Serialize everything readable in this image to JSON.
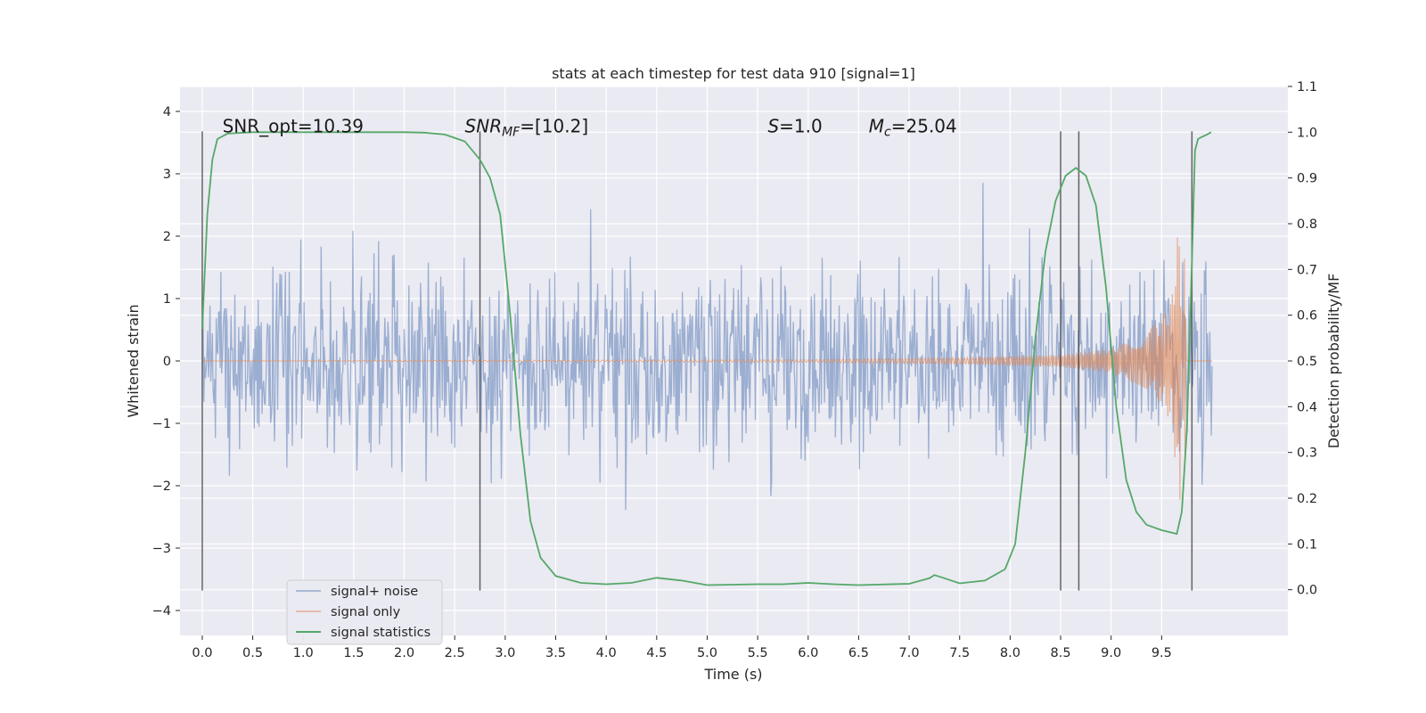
{
  "chart_data": {
    "type": "line",
    "title": "stats at each timestep for test data 910 [signal=1]",
    "xlabel": "Time (s)",
    "ylabel": "Whitened strain",
    "y2label": "Detection probability/MF",
    "xlim": [
      -0.22,
      10.75
    ],
    "ylim": [
      -4.4,
      4.4
    ],
    "y2lim": [
      -0.1,
      1.1
    ],
    "xticks": [
      "0.0",
      "0.5",
      "1.0",
      "1.5",
      "2.0",
      "2.5",
      "3.0",
      "3.5",
      "4.0",
      "4.5",
      "5.0",
      "5.5",
      "6.0",
      "6.5",
      "7.0",
      "7.5",
      "8.0",
      "8.5",
      "9.0",
      "9.5"
    ],
    "xtick_values": [
      0.0,
      0.5,
      1.0,
      1.5,
      2.0,
      2.5,
      3.0,
      3.5,
      4.0,
      4.5,
      5.0,
      5.5,
      6.0,
      6.5,
      7.0,
      7.5,
      8.0,
      8.5,
      9.0,
      9.5
    ],
    "yticks": [
      "4",
      "3",
      "2",
      "1",
      "0",
      "−1",
      "−2",
      "−3",
      "−4"
    ],
    "ytick_values": [
      4,
      3,
      2,
      1,
      0,
      -1,
      -2,
      -3,
      -4
    ],
    "y2ticks": [
      "1.1",
      "1.0",
      "0.9",
      "0.8",
      "0.7",
      "0.6",
      "0.5",
      "0.4",
      "0.3",
      "0.2",
      "0.1",
      "0.0"
    ],
    "y2tick_values": [
      1.1,
      1.0,
      0.9,
      0.8,
      0.7,
      0.6,
      0.5,
      0.4,
      0.3,
      0.2,
      0.1,
      0.0
    ],
    "grid": true,
    "legend_position": "bottom-left",
    "series": [
      {
        "name": "signal+ noise",
        "color": "#4c72b0",
        "axis": "left",
        "description_values": {
          "t_start": 0.0,
          "t_end": 10.0,
          "envelope_low": -2.0,
          "envelope_high": 2.0
        }
      },
      {
        "name": "signal only",
        "color": "#dd8452",
        "axis": "left",
        "points": [
          [
            0.0,
            0.0
          ],
          [
            6.0,
            0.02
          ],
          [
            7.5,
            0.05
          ],
          [
            8.5,
            0.1
          ],
          [
            9.0,
            0.2
          ],
          [
            9.3,
            0.4
          ],
          [
            9.5,
            0.7
          ],
          [
            9.6,
            1.0
          ],
          [
            9.68,
            2.4
          ],
          [
            9.72,
            -2.5
          ],
          [
            9.75,
            0.0
          ],
          [
            10.0,
            0.0
          ]
        ]
      },
      {
        "name": "signal statistics",
        "color": "#55a868",
        "axis": "right",
        "points": [
          [
            0.0,
            0.57
          ],
          [
            0.05,
            0.82
          ],
          [
            0.1,
            0.94
          ],
          [
            0.15,
            0.985
          ],
          [
            0.25,
            0.997
          ],
          [
            0.5,
            1.0
          ],
          [
            1.0,
            1.0
          ],
          [
            1.5,
            1.0
          ],
          [
            2.0,
            1.0
          ],
          [
            2.2,
            0.999
          ],
          [
            2.4,
            0.995
          ],
          [
            2.6,
            0.98
          ],
          [
            2.75,
            0.94
          ],
          [
            2.85,
            0.9
          ],
          [
            2.95,
            0.82
          ],
          [
            3.05,
            0.6
          ],
          [
            3.15,
            0.34
          ],
          [
            3.25,
            0.15
          ],
          [
            3.35,
            0.07
          ],
          [
            3.5,
            0.03
          ],
          [
            3.75,
            0.015
          ],
          [
            4.0,
            0.012
          ],
          [
            4.25,
            0.015
          ],
          [
            4.5,
            0.026
          ],
          [
            4.75,
            0.02
          ],
          [
            5.0,
            0.01
          ],
          [
            5.5,
            0.012
          ],
          [
            5.75,
            0.012
          ],
          [
            6.0,
            0.015
          ],
          [
            6.25,
            0.012
          ],
          [
            6.5,
            0.01
          ],
          [
            7.0,
            0.013
          ],
          [
            7.2,
            0.025
          ],
          [
            7.25,
            0.032
          ],
          [
            7.35,
            0.025
          ],
          [
            7.5,
            0.014
          ],
          [
            7.75,
            0.02
          ],
          [
            7.95,
            0.045
          ],
          [
            8.05,
            0.1
          ],
          [
            8.15,
            0.3
          ],
          [
            8.25,
            0.55
          ],
          [
            8.35,
            0.74
          ],
          [
            8.45,
            0.85
          ],
          [
            8.55,
            0.905
          ],
          [
            8.65,
            0.922
          ],
          [
            8.75,
            0.905
          ],
          [
            8.85,
            0.84
          ],
          [
            8.95,
            0.66
          ],
          [
            9.05,
            0.4
          ],
          [
            9.15,
            0.24
          ],
          [
            9.25,
            0.17
          ],
          [
            9.35,
            0.142
          ],
          [
            9.5,
            0.13
          ],
          [
            9.65,
            0.122
          ],
          [
            9.7,
            0.17
          ],
          [
            9.75,
            0.35
          ],
          [
            9.8,
            0.72
          ],
          [
            9.83,
            0.96
          ],
          [
            9.86,
            0.985
          ],
          [
            9.9,
            0.99
          ],
          [
            9.95,
            0.995
          ],
          [
            9.99,
            1.0
          ]
        ]
      }
    ],
    "vertical_markers": [
      0.0,
      2.75,
      8.5,
      8.68,
      9.8
    ],
    "annotations": [
      {
        "text": "SNR_opt=10.39",
        "x": 0.2,
        "y2": 1.0
      },
      {
        "text_main": "SNR",
        "text_sub": "MF",
        "text_rest": "=[10.2]",
        "x": 2.6,
        "y2": 1.0
      },
      {
        "text_main": "S",
        "text_sub": "",
        "text_rest": "=1.0",
        "x": 5.6,
        "y2": 1.0
      },
      {
        "text_main": "M",
        "text_sub": "c",
        "text_rest": "=25.04",
        "x": 6.6,
        "y2": 1.0
      }
    ]
  }
}
